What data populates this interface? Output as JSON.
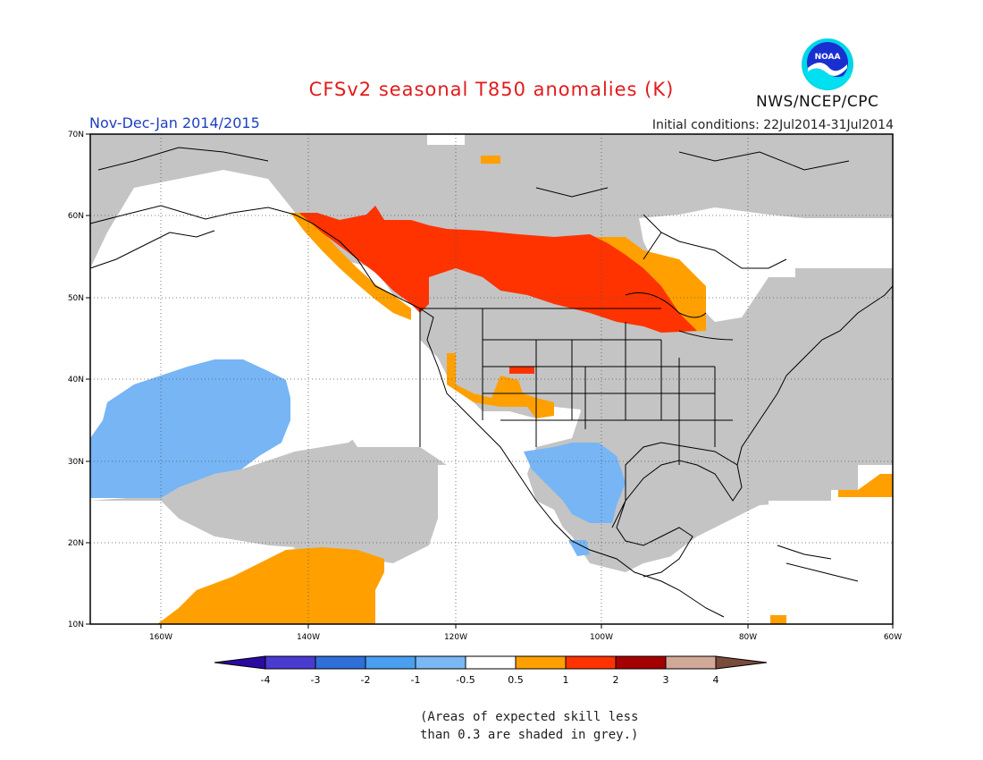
{
  "header": {
    "title": "CFSv2 seasonal T850 anomalies (K)",
    "period": "Nov-Dec-Jan 2014/2015",
    "initial_conditions": "Initial conditions: 22Jul2014-31Jul2014",
    "agency": "NWS/NCEP/CPC",
    "logo_text": "NOAA"
  },
  "map": {
    "lat_labels": [
      "70N",
      "60N",
      "50N",
      "40N",
      "30N",
      "20N",
      "10N"
    ],
    "lon_labels": [
      "160W",
      "140W",
      "120W",
      "100W",
      "80W",
      "60W"
    ]
  },
  "legend": {
    "tick_labels": [
      "-4",
      "-3",
      "-2",
      "-1",
      "-0.5",
      "0.5",
      "1",
      "2",
      "3",
      "4"
    ],
    "colors": [
      "#2a0aa0",
      "#4a3ad0",
      "#2f6fd8",
      "#4a9ff0",
      "#7ab8f5",
      "#ffffff",
      "#ffa000",
      "#ff3300",
      "#a50000",
      "#d2a898",
      "#7a4a3a"
    ]
  },
  "note": {
    "line1": "(Areas of expected skill less",
    "line2": "than 0.3 are shaded in grey.)"
  },
  "colors": {
    "grey": "#c4c4c4",
    "orange": "#ffa000",
    "red": "#ff3300",
    "blue": "#77b5f5"
  }
}
